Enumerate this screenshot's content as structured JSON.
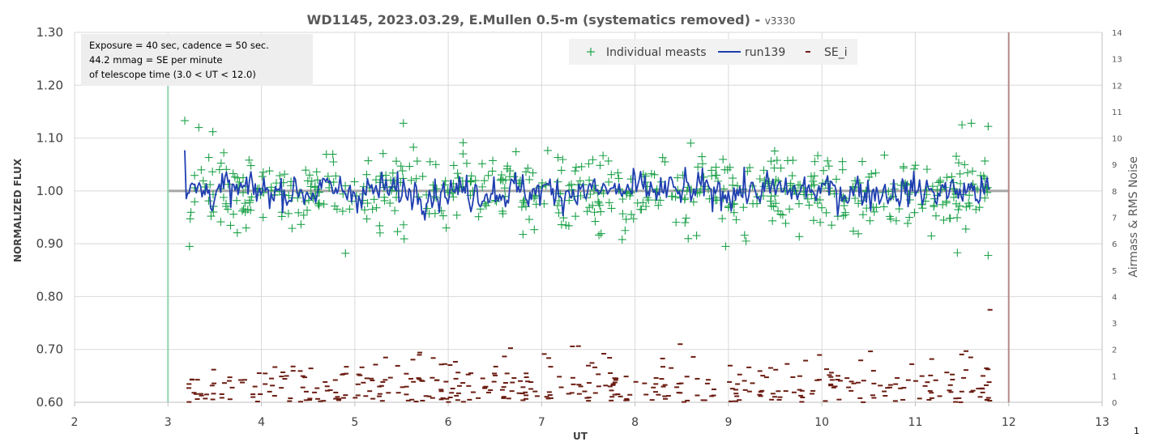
{
  "title": {
    "main": "WD1145, 2023.03.29, E.Mullen 0.5-m (systematics removed)",
    "separator": " - ",
    "version": "v3330"
  },
  "note": {
    "line1": "Exposure = 40 sec, cadence = 50 sec.",
    "line2": "44.2 mmag = SE per minute",
    "line3": "of telescope time (3.0 < UT < 12.0)"
  },
  "corner_label": "1",
  "colors": {
    "meas": "#1ea24a",
    "run": "#1f3fb0",
    "se": "#6b1d12",
    "start_line": "#8fd3b0",
    "end_line": "#b58a8a",
    "baseline": "#a6a6a6",
    "grid": "#d9d9d9",
    "note_bg": "#eeeeee"
  },
  "chart_data": {
    "type": "scatter",
    "xlabel": "UT",
    "ylabel": "NORMALIZED FLUX",
    "y2label": "Airmass & RMS Noise",
    "xlim": [
      2,
      13
    ],
    "ylim": [
      0.6,
      1.3
    ],
    "y2lim": [
      0,
      14
    ],
    "xticks": [
      "2",
      "3",
      "4",
      "5",
      "6",
      "7",
      "8",
      "9",
      "10",
      "11",
      "12",
      "13"
    ],
    "yticks": [
      "0.60",
      "0.70",
      "0.80",
      "0.90",
      "1.00",
      "1.10",
      "1.20",
      "1.30"
    ],
    "y2ticks": [
      "0",
      "1",
      "2",
      "3",
      "4",
      "5",
      "6",
      "7",
      "8",
      "9",
      "10",
      "11",
      "12",
      "13",
      "14"
    ],
    "grid": true,
    "legend_position": "top-center",
    "legend": [
      {
        "key": "meas",
        "label": "Individual measts"
      },
      {
        "key": "run",
        "label": "run139"
      },
      {
        "key": "se",
        "label": "SE_i"
      }
    ],
    "baseline": 1.0,
    "start_ut": 3.0,
    "end_ut": 12.0,
    "series": [
      {
        "name": "Individual measts",
        "key": "meas",
        "x_start": 3.2,
        "x_end": 11.78,
        "count": 620,
        "mean": 1.0,
        "rms": 0.0442,
        "extremes": [
          [
            3.18,
            1.133
          ],
          [
            3.33,
            1.12
          ],
          [
            3.48,
            1.112
          ],
          [
            5.52,
            1.128
          ],
          [
            11.6,
            1.128
          ],
          [
            11.5,
            1.125
          ],
          [
            11.78,
            1.122
          ],
          [
            3.23,
            0.895
          ],
          [
            4.9,
            0.882
          ],
          [
            8.97,
            0.895
          ],
          [
            11.78,
            0.878
          ],
          [
            11.45,
            0.883
          ]
        ]
      },
      {
        "name": "run139",
        "key": "run",
        "x_start": 3.18,
        "x_end": 11.8,
        "mean": 1.0,
        "range": [
          0.945,
          1.078
        ]
      },
      {
        "name": "SE_i",
        "key": "se",
        "axis": "right",
        "x_start": 3.2,
        "x_end": 11.8,
        "count": 420,
        "range": [
          0,
          3.5
        ],
        "max_point": [
          11.8,
          3.5
        ]
      }
    ]
  }
}
